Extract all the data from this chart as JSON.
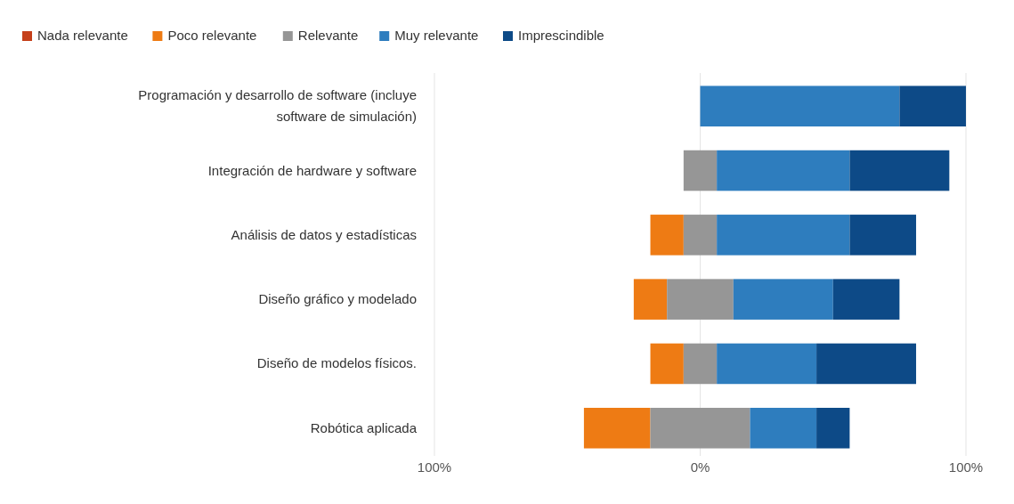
{
  "chart_data": {
    "type": "bar",
    "orientation": "horizontal",
    "categories": [
      "Programación y desarrollo de software (incluye software de simulación)",
      "Integración de hardware y software",
      "Análisis de datos y estadísticas",
      "Diseño gráfico y modelado",
      "Diseño de modelos físicos.",
      "Robótica aplicada"
    ],
    "series": [
      {
        "name": "Nada relevante",
        "color": "#c5401a",
        "values": [
          0,
          0,
          0,
          0,
          0,
          0
        ]
      },
      {
        "name": "Poco relevante",
        "color": "#ee7b14",
        "values": [
          0,
          0,
          12.5,
          12.5,
          12.5,
          25
        ],
        "base": [
          null,
          null,
          -18.75,
          -25,
          -18.75,
          -43.75
        ]
      },
      {
        "name": "Relevante",
        "color": "#969696",
        "values": [
          0,
          12.5,
          12.5,
          25,
          12.5,
          37.5
        ],
        "base": [
          null,
          -6.25,
          -6.25,
          -12.5,
          -6.25,
          -18.75
        ]
      },
      {
        "name": "Muy relevante",
        "color": "#2e7dbe",
        "values": [
          75,
          50,
          50,
          37.5,
          37.5,
          25
        ],
        "base": [
          0,
          6.25,
          6.25,
          12.5,
          6.25,
          18.75
        ]
      },
      {
        "name": "Imprescindible",
        "color": "#0d4a87",
        "values": [
          25,
          37.5,
          25,
          25,
          37.5,
          12.5
        ],
        "base": [
          75,
          56.25,
          56.25,
          50,
          43.75,
          43.75
        ]
      }
    ],
    "xlim": [
      -100,
      100
    ],
    "xticks": [
      {
        "value": -100,
        "label": "100%"
      },
      {
        "value": 0,
        "label": "0%"
      },
      {
        "value": 100,
        "label": "100%"
      }
    ],
    "grid": "x",
    "legend": "top left"
  }
}
